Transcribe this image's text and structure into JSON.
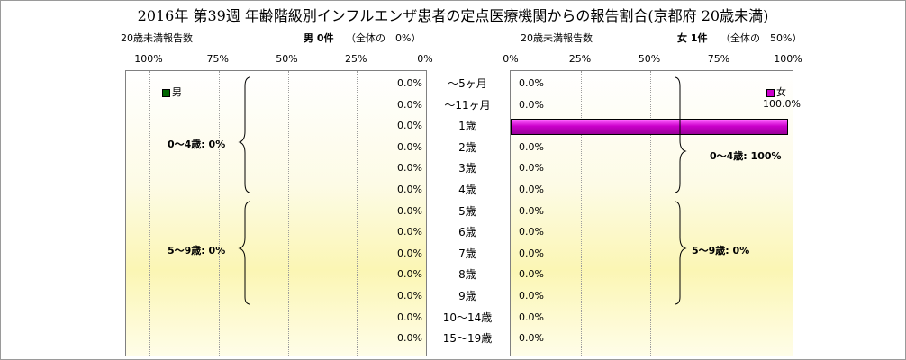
{
  "title": "2016年 第39週 年齢階級別インフルエンザ患者の定点医療機関からの報告割合(京都府 20歳未満)",
  "male": {
    "header_left": "20歳未満報告数",
    "header_count": "男 0件",
    "header_share": "（全体の　0%）",
    "ticks": [
      "100%",
      "75%",
      "50%",
      "25%",
      "0%"
    ],
    "legend": "男",
    "legend_color": "#006600",
    "brace_labels": [
      "0～4歳: 0%",
      "5～9歳: 0%"
    ]
  },
  "female": {
    "header_left": "20歳未満報告数",
    "header_count": "女 1件",
    "header_share": "（全体の　50%）",
    "ticks": [
      "0%",
      "25%",
      "50%",
      "75%",
      "100%"
    ],
    "legend": "女",
    "legend_color": "#cc00cc",
    "brace_labels": [
      "0～4歳: 100%",
      "5～9歳: 0%"
    ]
  },
  "chart_data": {
    "type": "bar",
    "orientation": "horizontal",
    "categories": [
      "～5ヶ月",
      "～11ヶ月",
      "1歳",
      "2歳",
      "3歳",
      "4歳",
      "5歳",
      "6歳",
      "7歳",
      "8歳",
      "9歳",
      "10～14歳",
      "15～19歳"
    ],
    "series": [
      {
        "name": "男",
        "values": [
          0,
          0,
          0,
          0,
          0,
          0,
          0,
          0,
          0,
          0,
          0,
          0,
          0
        ],
        "labels": [
          "0.0%",
          "0.0%",
          "0.0%",
          "0.0%",
          "0.0%",
          "0.0%",
          "0.0%",
          "0.0%",
          "0.0%",
          "0.0%",
          "0.0%",
          "0.0%",
          "0.0%"
        ]
      },
      {
        "name": "女",
        "values": [
          0,
          0,
          100,
          0,
          0,
          0,
          0,
          0,
          0,
          0,
          0,
          0,
          0
        ],
        "labels": [
          "0.0%",
          "0.0%",
          "100.0%",
          "0.0%",
          "0.0%",
          "0.0%",
          "0.0%",
          "0.0%",
          "0.0%",
          "0.0%",
          "0.0%",
          "0.0%",
          "0.0%"
        ]
      }
    ],
    "xlim": [
      0,
      100
    ]
  }
}
